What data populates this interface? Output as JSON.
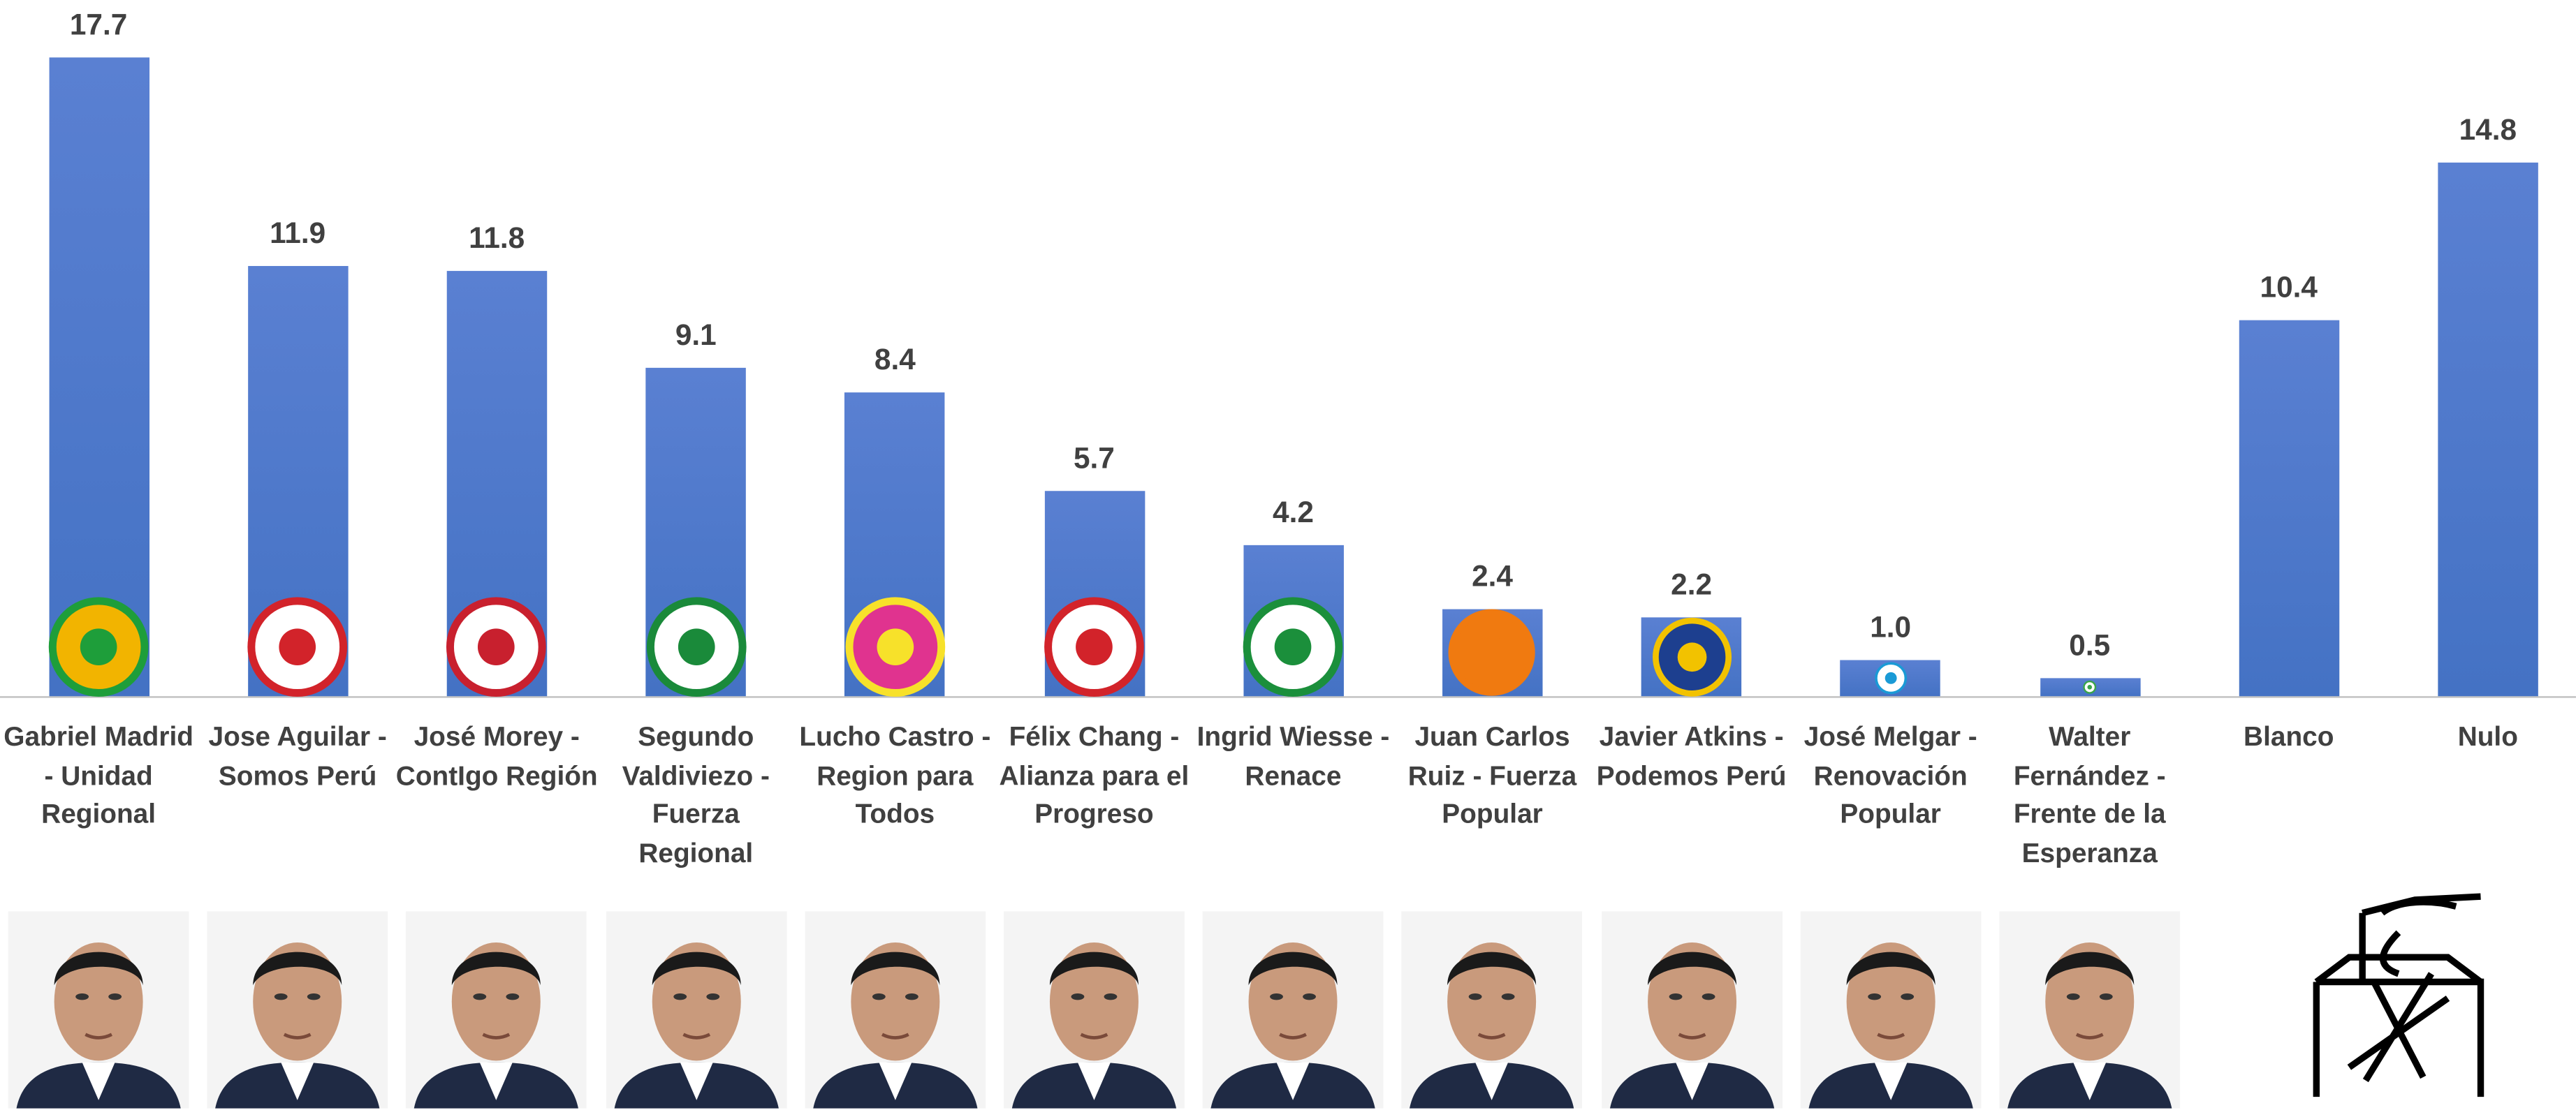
{
  "chart_data": {
    "type": "bar",
    "categories": [
      "Gabriel Madrid - Unidad Regional",
      "Jose Aguilar - Somos Perú",
      "José Morey - ContIgo Región",
      "Segundo Valdiviezo - Fuerza Regional",
      "Lucho Castro - Region para Todos",
      "Félix Chang - Alianza para el Progreso",
      "Ingrid Wiesse - Renace",
      "Juan Carlos Ruiz - Fuerza Popular",
      "Javier Atkins - Podemos Perú",
      "José Melgar - Renovación Popular",
      "Walter Fernández  - Frente de la Esperanza",
      "Blanco",
      "Nulo"
    ],
    "values": [
      17.7,
      11.9,
      11.8,
      9.1,
      8.4,
      5.7,
      4.2,
      2.4,
      2.2,
      1.0,
      0.5,
      10.4,
      14.8
    ],
    "value_labels": [
      "17.7",
      "11.9",
      "11.8",
      "9.1",
      "8.4",
      "5.7",
      "4.2",
      "2.4",
      "2.2",
      "1.0",
      "0.5",
      "10.4",
      "14.8"
    ],
    "color": "#4472c4"
  }
}
